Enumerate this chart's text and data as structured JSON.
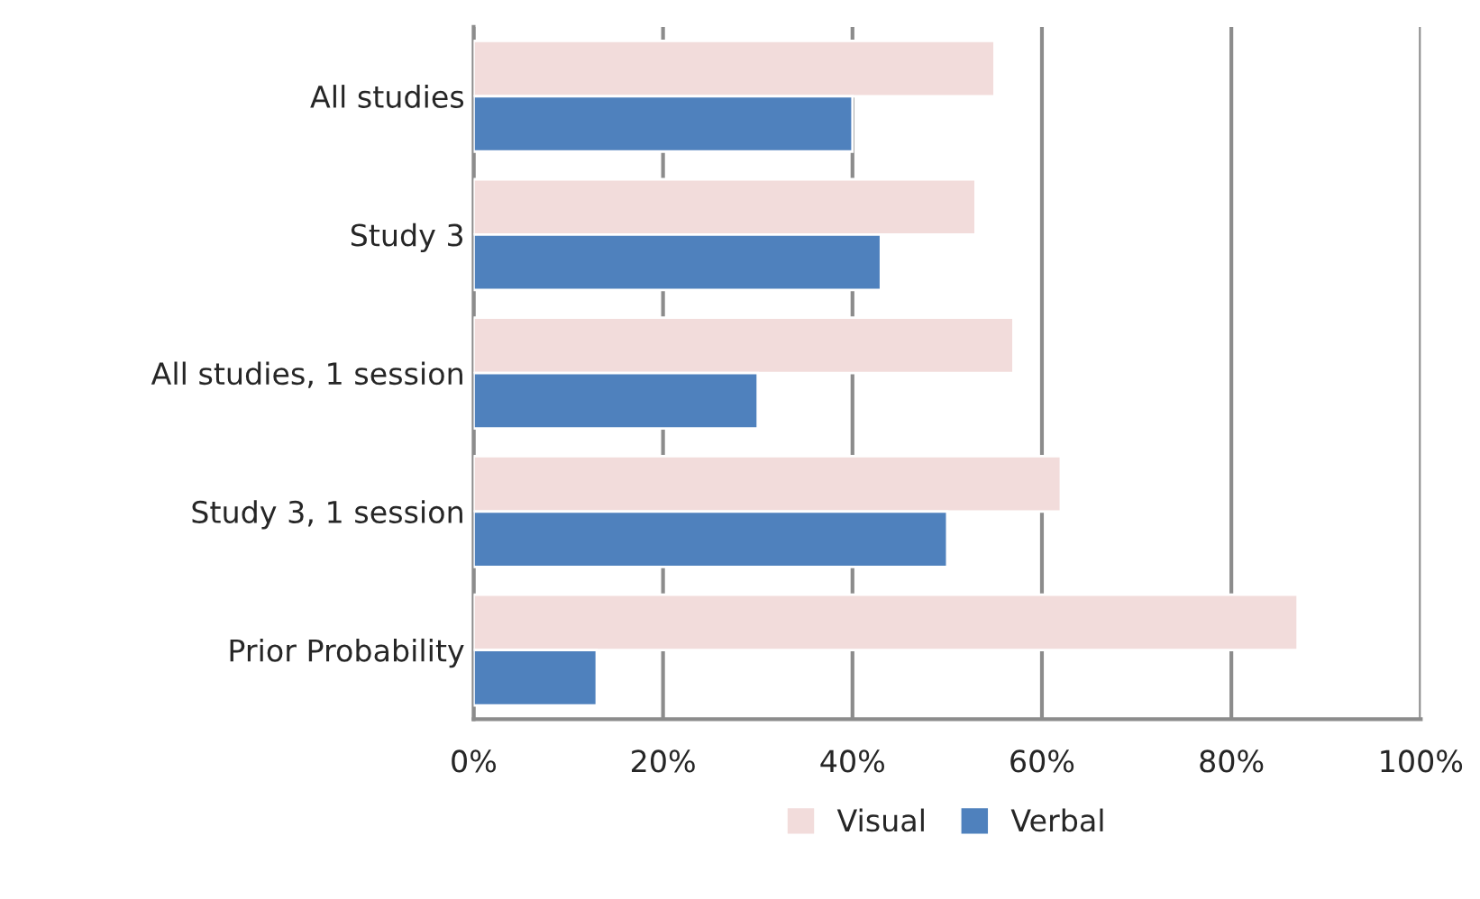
{
  "chart_data": {
    "type": "bar",
    "orientation": "horizontal",
    "categories": [
      "All studies",
      "Study 3",
      "All studies, 1 session",
      "Study 3, 1 session",
      "Prior Probability"
    ],
    "series": [
      {
        "name": "Visual",
        "color": "#f2dcdb",
        "values": [
          55,
          53,
          57,
          62,
          87
        ]
      },
      {
        "name": "Verbal",
        "color": "#4f81bd",
        "values": [
          40,
          43,
          30,
          50,
          13
        ]
      }
    ],
    "xlim": [
      0,
      100
    ],
    "xticks": [
      {
        "value": 0,
        "label": "0%"
      },
      {
        "value": 20,
        "label": "20%"
      },
      {
        "value": 40,
        "label": "40%"
      },
      {
        "value": 60,
        "label": "60%"
      },
      {
        "value": 80,
        "label": "80%"
      },
      {
        "value": 100,
        "label": "100%"
      }
    ],
    "grid": "x",
    "legend": "bottom"
  }
}
